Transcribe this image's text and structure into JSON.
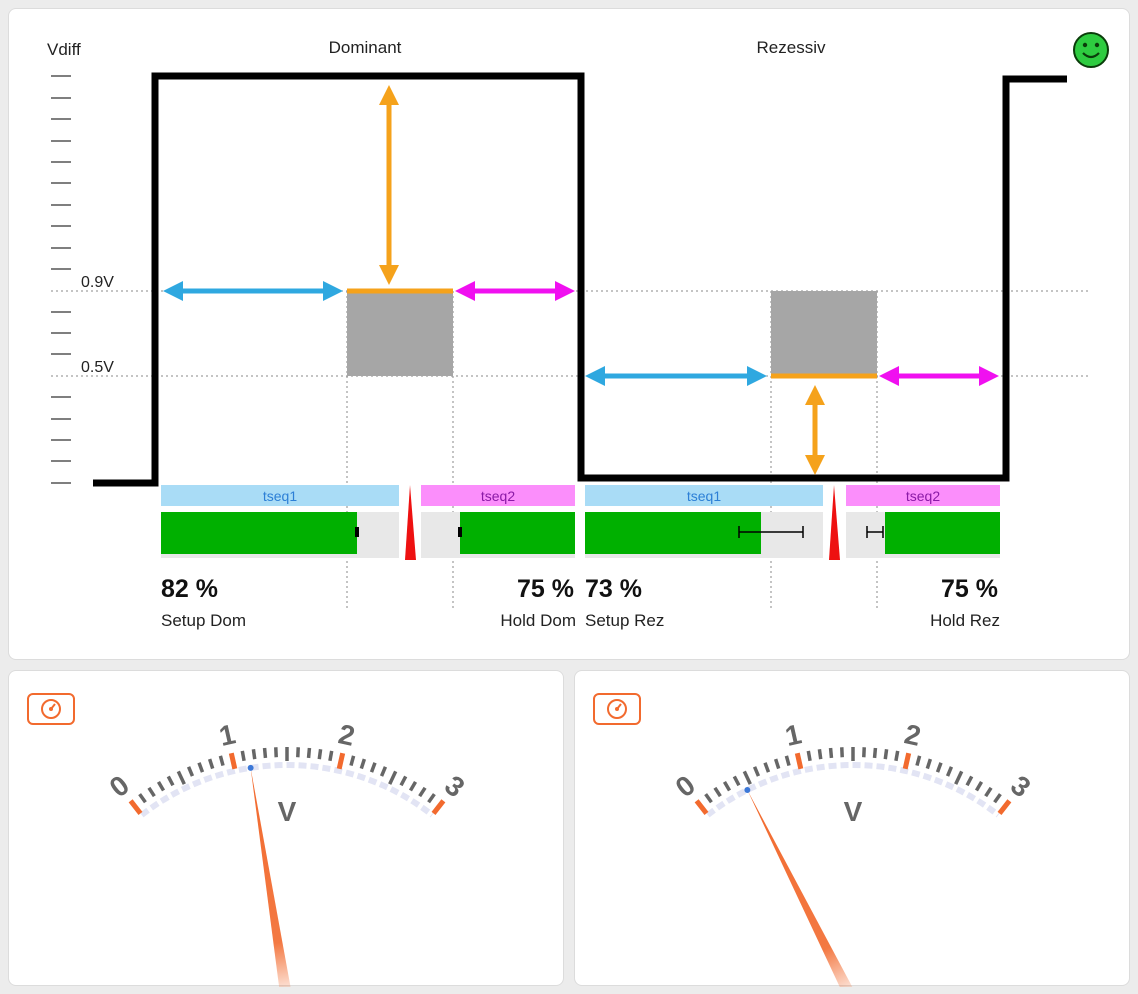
{
  "timing": {
    "y_axis_label": "Vdiff",
    "dominant_label": "Dominant",
    "recessive_label": "Rezessiv",
    "level_high": "0.9V",
    "level_low": "0.5V",
    "status_icon": "smiley-icon",
    "bars": {
      "tseq1_dom": "tseq1",
      "tseq2_dom": "tseq2",
      "tseq1_rez": "tseq1",
      "tseq2_rez": "tseq2"
    },
    "results": {
      "setup_dom": {
        "value": "82 %",
        "label": "Setup Dom"
      },
      "hold_dom": {
        "value": "75 %",
        "label": "Hold Dom"
      },
      "setup_rez": {
        "value": "73 %",
        "label": "Setup Rez"
      },
      "hold_rez": {
        "value": "75 %",
        "label": "Hold Rez"
      }
    }
  },
  "gauges": [
    {
      "unit": "V",
      "scale": [
        "0",
        "1",
        "2",
        "3"
      ],
      "value": 1.15,
      "min": 0,
      "max": 3,
      "icon": "speedometer-icon"
    },
    {
      "unit": "V",
      "scale": [
        "0",
        "1",
        "2",
        "3"
      ],
      "value": 0.45,
      "min": 0,
      "max": 3,
      "icon": "speedometer-icon"
    }
  ],
  "colors": {
    "signal": "#000000",
    "setup_arrow": "#2fa8e0",
    "hold_arrow": "#f010f0",
    "margin_arrow": "#f5a21b",
    "window": "#a6a6a6",
    "bar_green": "#00b000",
    "tseq1_bg": "#a9dcf6",
    "tseq2_bg": "#fb8efb",
    "needle": "#f26a2e",
    "smiley": "#2ecc40"
  }
}
